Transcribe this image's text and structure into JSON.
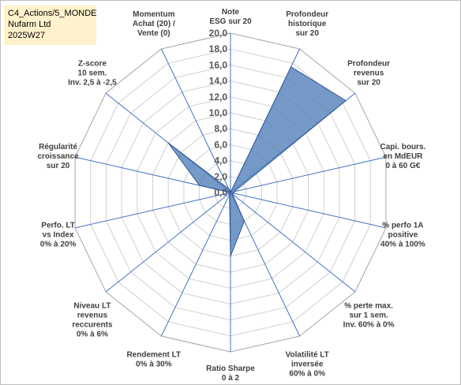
{
  "info": {
    "line1": "C4_Actions/5_MONDE",
    "line2": "Nufarm Ltd",
    "line3": "2025W27"
  },
  "chart_data": {
    "type": "radar",
    "title": "",
    "rmin": 0,
    "rmax": 20,
    "tick_step": 2,
    "tick_labels": [
      "0,0",
      "2,0",
      "4,0",
      "6,0",
      "8,0",
      "10,0",
      "12,0",
      "14,0",
      "16,0",
      "18,0",
      "20,0"
    ],
    "grid": true,
    "legend": "none",
    "series_color": "#4f7eb8",
    "axes": [
      {
        "label": [
          "Note",
          "ESG sur 20"
        ],
        "value": 0
      },
      {
        "label": [
          "Profondeur",
          "historique",
          "sur 20"
        ],
        "value": 17.5
      },
      {
        "label": [
          "Profondeur",
          "revenus",
          "sur 20"
        ],
        "value": 18.5
      },
      {
        "label": [
          "Capi. bours.",
          "en MdEUR",
          "0 à 60 G€"
        ],
        "value": 0.5
      },
      {
        "label": [
          "% perfo 1A",
          "positive",
          "40% à 100%"
        ],
        "value": 0.4
      },
      {
        "label": [
          "% perte max.",
          "sur 1 sem.",
          "Inv. 60% à 0%"
        ],
        "value": 0.3
      },
      {
        "label": [
          "Volatilité LT",
          "inversée",
          "60% à 0%"
        ],
        "value": 4.0
      },
      {
        "label": [
          "Ratio Sharpe",
          "0 à 2"
        ],
        "value": 8.0
      },
      {
        "label": [
          "Rendement LT",
          "0% à 30%"
        ],
        "value": 0.3
      },
      {
        "label": [
          "Niveau LT",
          "revenus",
          "reccurents",
          "0% à 6%"
        ],
        "value": 0
      },
      {
        "label": [
          "Perfo. LT",
          "vs Index",
          "0% à 20%"
        ],
        "value": 0
      },
      {
        "label": [
          "Régularité",
          "croissance",
          "sur 20"
        ],
        "value": 4.0
      },
      {
        "label": [
          "Z-score",
          "10 sem.",
          "Inv. 2,5 à -2,5"
        ],
        "value": 10.0
      },
      {
        "label": [
          "Momentum",
          "Achat (20) /",
          "Vente (0)"
        ],
        "value": 0.5
      }
    ]
  }
}
